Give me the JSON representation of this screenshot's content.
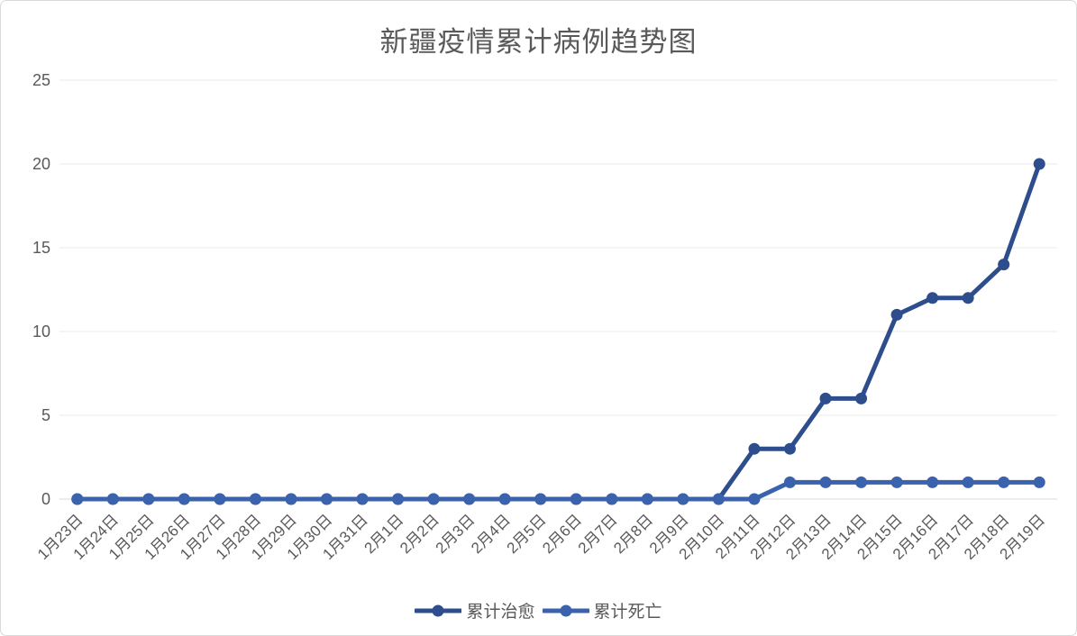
{
  "chart_data": {
    "type": "line",
    "title": "新疆疫情累计病例趋势图",
    "categories": [
      "1月23日",
      "1月24日",
      "1月25日",
      "1月26日",
      "1月27日",
      "1月28日",
      "1月29日",
      "1月30日",
      "1月31日",
      "2月1日",
      "2月2日",
      "2月3日",
      "2月4日",
      "2月5日",
      "2月6日",
      "2月7日",
      "2月8日",
      "2月9日",
      "2月10日",
      "2月11日",
      "2月12日",
      "2月13日",
      "2月14日",
      "2月15日",
      "2月16日",
      "2月17日",
      "2月18日",
      "2月19日"
    ],
    "series": [
      {
        "name": "累计治愈",
        "color": "#2E4D8C",
        "values": [
          0,
          0,
          0,
          0,
          0,
          0,
          0,
          0,
          0,
          0,
          0,
          0,
          0,
          0,
          0,
          0,
          0,
          0,
          0,
          3,
          3,
          6,
          6,
          11,
          12,
          12,
          14,
          20
        ]
      },
      {
        "name": "累计死亡",
        "color": "#3B62AD",
        "values": [
          0,
          0,
          0,
          0,
          0,
          0,
          0,
          0,
          0,
          0,
          0,
          0,
          0,
          0,
          0,
          0,
          0,
          0,
          0,
          0,
          1,
          1,
          1,
          1,
          1,
          1,
          1,
          1
        ]
      }
    ],
    "xlabel": "",
    "ylabel": "",
    "ylim": [
      0,
      25
    ],
    "yticks": [
      0,
      5,
      10,
      15,
      20,
      25
    ],
    "grid": true,
    "legend_position": "bottom",
    "x_tick_rotation": -45
  },
  "styles": {
    "background": "#ffffff",
    "card_border_color": "#d9d9d9",
    "title_color": "#595959",
    "axis_text_color": "#595959",
    "gridline_color": "#e9e9e9",
    "axis_line_color": "#d9d9d9"
  }
}
